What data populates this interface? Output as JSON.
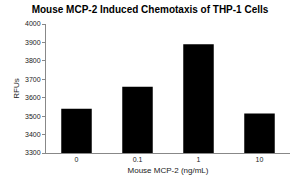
{
  "chart_data": {
    "type": "bar",
    "title": "Mouse MCP-2 Induced Chemotaxis of THP-1 Cells",
    "x_label": "Mouse MCP-2 (ng/mL)",
    "y_label": "RFUs",
    "categories": [
      "0",
      "0.1",
      "1",
      "10"
    ],
    "values": [
      3540,
      3660,
      3890,
      3515
    ],
    "color": "#000000",
    "ylim": [
      3300,
      4000
    ],
    "yticks": [
      3300,
      3400,
      3500,
      3600,
      3700,
      3800,
      3900,
      4000
    ],
    "grid": false
  }
}
